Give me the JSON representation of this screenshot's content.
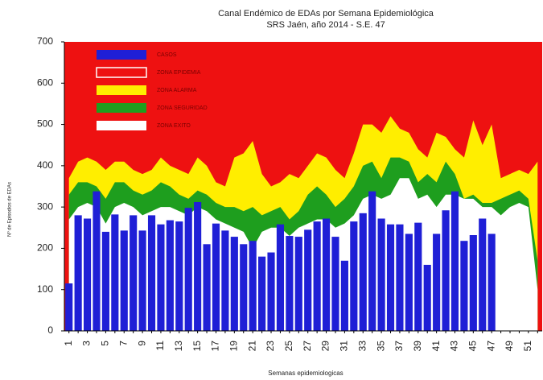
{
  "chart_data": {
    "type": "bar",
    "title": "Canal Endémico de EDAs por Semana Epidemiológica",
    "subtitle": "SRS Jaén, año 2014 - S.E. 47",
    "x_label": "Semanas epidemiologicas",
    "y_label": "Nº de Episodios de EDAs",
    "categories": [
      "1",
      null,
      "3",
      null,
      "5",
      null,
      "7",
      null,
      "9",
      null,
      "11",
      null,
      "13",
      null,
      "15",
      null,
      "17",
      null,
      "19",
      null,
      "21",
      null,
      "23",
      null,
      "25",
      null,
      "27",
      null,
      "29",
      null,
      "31",
      null,
      "33",
      null,
      "35",
      null,
      "37",
      null,
      "39",
      null,
      "41",
      null,
      "43",
      null,
      "45",
      null,
      "47",
      null,
      "49",
      null,
      "51",
      null
    ],
    "ylim": [
      0,
      700
    ],
    "yticks": [
      0,
      100,
      200,
      300,
      400,
      500,
      600,
      700
    ],
    "legend": "top-left",
    "series": [
      {
        "name": "CASOS",
        "type": "bar",
        "color": "#1f1fd6",
        "values": [
          115,
          280,
          272,
          338,
          240,
          282,
          243,
          280,
          243,
          280,
          258,
          268,
          265,
          298,
          312,
          210,
          260,
          243,
          228,
          210,
          218,
          180,
          190,
          258,
          230,
          228,
          245,
          265,
          272,
          228,
          170,
          265,
          285,
          338,
          272,
          258,
          258,
          235,
          262,
          160,
          235,
          292,
          338,
          218,
          232,
          272,
          235,
          null,
          null,
          null,
          null,
          null
        ]
      },
      {
        "name": "ZONA EPIDEMIA",
        "type": "background",
        "color": "#ee1111"
      },
      {
        "name": "ZONA ALARMA",
        "type": "area",
        "color": "#ffee00",
        "values": [
          370,
          410,
          420,
          410,
          390,
          410,
          410,
          390,
          380,
          390,
          420,
          400,
          390,
          380,
          420,
          400,
          360,
          350,
          420,
          430,
          460,
          380,
          350,
          360,
          380,
          370,
          400,
          430,
          420,
          390,
          370,
          430,
          500,
          500,
          480,
          520,
          490,
          480,
          440,
          420,
          480,
          470,
          440,
          420,
          510,
          450,
          500,
          370,
          380,
          390,
          380,
          410
        ]
      },
      {
        "name": "ZONA SEGURIDAD",
        "type": "area",
        "color": "#1e9e1e",
        "values": [
          330,
          360,
          360,
          350,
          320,
          360,
          360,
          340,
          330,
          340,
          360,
          350,
          330,
          320,
          340,
          330,
          310,
          300,
          300,
          290,
          300,
          280,
          290,
          300,
          270,
          290,
          330,
          350,
          330,
          300,
          320,
          350,
          400,
          410,
          370,
          420,
          420,
          410,
          360,
          380,
          360,
          410,
          380,
          320,
          330,
          310,
          310,
          320,
          330,
          340,
          320,
          170
        ]
      },
      {
        "name": "ZONA EXITO",
        "type": "area",
        "color": "#ffffff",
        "values": [
          270,
          300,
          310,
          300,
          260,
          300,
          310,
          300,
          280,
          290,
          300,
          300,
          290,
          280,
          300,
          290,
          270,
          260,
          250,
          240,
          200,
          240,
          250,
          250,
          230,
          250,
          260,
          270,
          270,
          250,
          260,
          280,
          320,
          330,
          320,
          330,
          370,
          370,
          320,
          330,
          300,
          330,
          330,
          320,
          320,
          300,
          300,
          280,
          300,
          310,
          300,
          100
        ]
      }
    ]
  }
}
